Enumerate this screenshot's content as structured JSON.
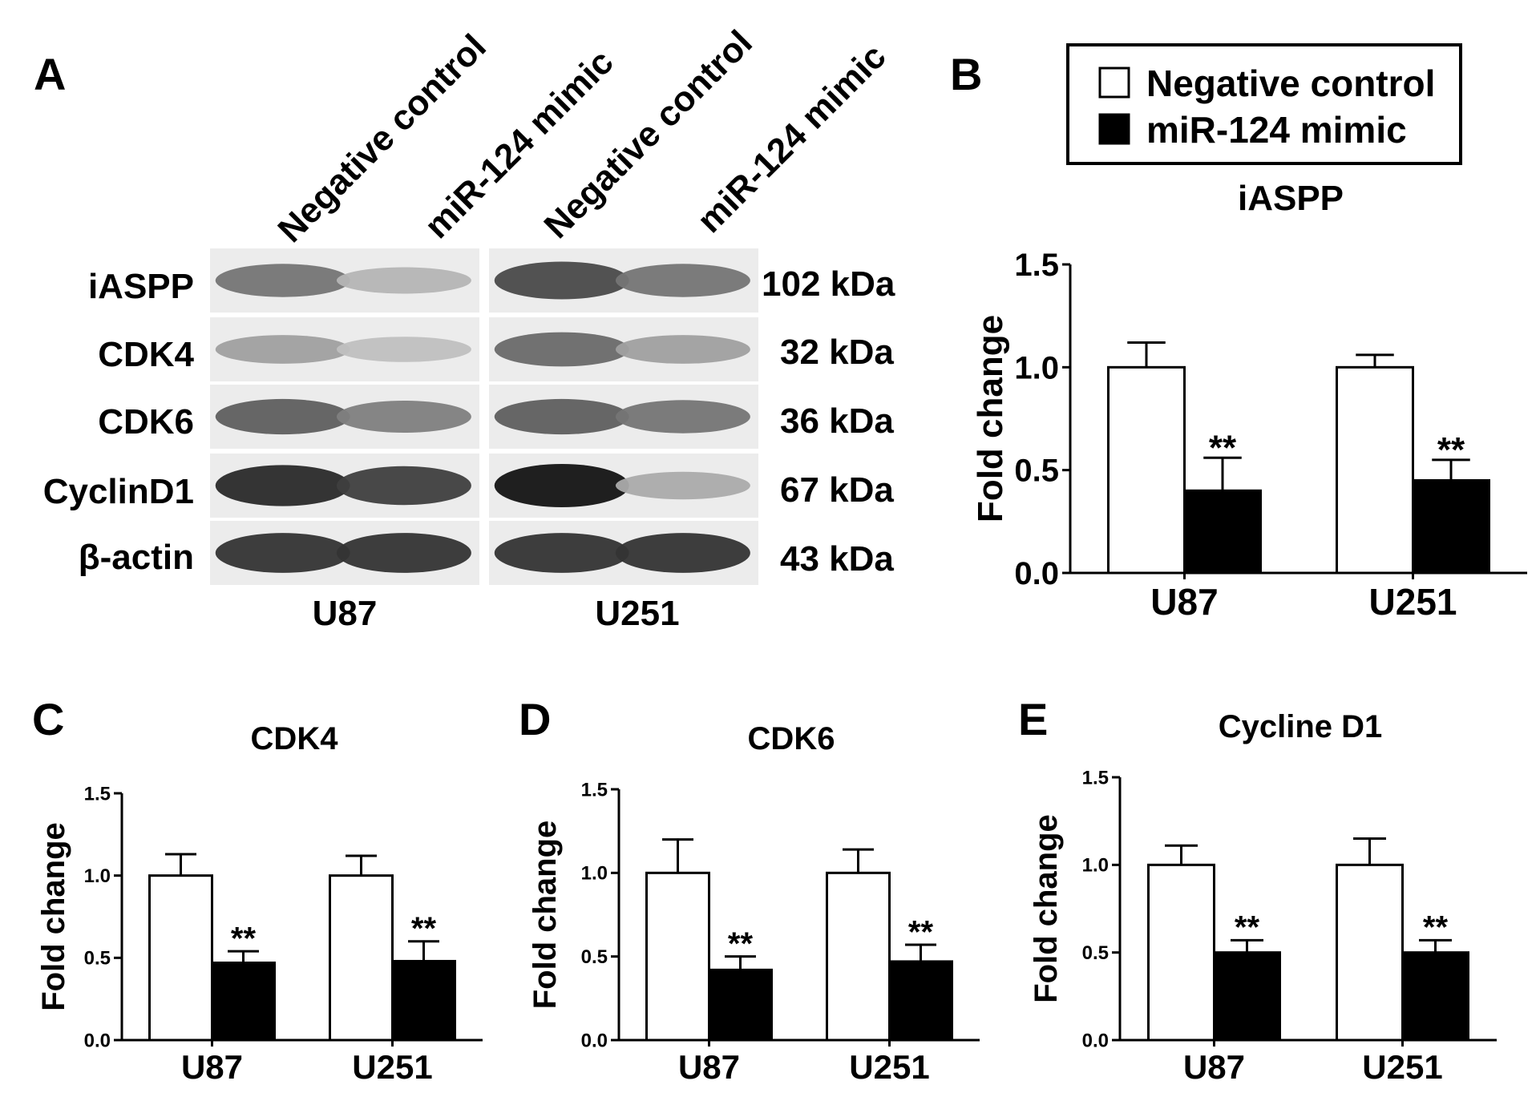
{
  "panel_a": {
    "letter": "A",
    "lanes": [
      "Negative control",
      "miR-124 mimic",
      "Negative control",
      "miR-124 mimic"
    ],
    "cell_lines": [
      "U87",
      "U251"
    ],
    "rows": [
      {
        "protein": "iASPP",
        "size": "102 kDa",
        "intensity": [
          0.55,
          0.25,
          0.75,
          0.55
        ]
      },
      {
        "protein": "CDK4",
        "size": "32 kDa",
        "intensity": [
          0.35,
          0.2,
          0.6,
          0.35
        ]
      },
      {
        "protein": "CDK6",
        "size": "36 kDa",
        "intensity": [
          0.65,
          0.5,
          0.65,
          0.55
        ]
      },
      {
        "protein": "CyclinD1",
        "size": "67 kDa",
        "intensity": [
          0.9,
          0.8,
          1.0,
          0.3
        ]
      },
      {
        "protein": "β-actin",
        "size": "43 kDa",
        "intensity": [
          0.85,
          0.85,
          0.85,
          0.85
        ]
      }
    ]
  },
  "legend": {
    "items": [
      {
        "label": "Negative control",
        "color": "#ffffff"
      },
      {
        "label": "miR-124 mimic",
        "color": "#000000"
      }
    ]
  },
  "chart_data": [
    {
      "panel": "B",
      "type": "bar",
      "title": "iASPP",
      "ylabel": "Fold change",
      "xlabel": "",
      "categories": [
        "U87",
        "U251"
      ],
      "ylim": [
        0,
        1.5
      ],
      "yticks": [
        "0.0",
        "0.5",
        "1.0",
        "1.5"
      ],
      "series": [
        {
          "name": "Negative control",
          "values": [
            1.0,
            1.0
          ],
          "errors": [
            0.12,
            0.06
          ]
        },
        {
          "name": "miR-124 mimic",
          "values": [
            0.4,
            0.45
          ],
          "errors": [
            0.16,
            0.1
          ],
          "annotations": [
            "**",
            "**"
          ]
        }
      ]
    },
    {
      "panel": "C",
      "type": "bar",
      "title": "CDK4",
      "ylabel": "Fold change",
      "xlabel": "",
      "categories": [
        "U87",
        "U251"
      ],
      "ylim": [
        0,
        1.5
      ],
      "yticks": [
        "0.0",
        "0.5",
        "1.0",
        "1.5"
      ],
      "series": [
        {
          "name": "Negative control",
          "values": [
            1.0,
            1.0
          ],
          "errors": [
            0.13,
            0.12
          ]
        },
        {
          "name": "miR-124 mimic",
          "values": [
            0.47,
            0.48
          ],
          "errors": [
            0.07,
            0.12
          ],
          "annotations": [
            "**",
            "**"
          ]
        }
      ]
    },
    {
      "panel": "D",
      "type": "bar",
      "title": "CDK6",
      "ylabel": "Fold change",
      "xlabel": "",
      "categories": [
        "U87",
        "U251"
      ],
      "ylim": [
        0,
        1.5
      ],
      "yticks": [
        "0.0",
        "0.5",
        "1.0",
        "1.5"
      ],
      "series": [
        {
          "name": "Negative control",
          "values": [
            1.0,
            1.0
          ],
          "errors": [
            0.2,
            0.14
          ]
        },
        {
          "name": "miR-124 mimic",
          "values": [
            0.42,
            0.47
          ],
          "errors": [
            0.08,
            0.1
          ],
          "annotations": [
            "**",
            "**"
          ]
        }
      ]
    },
    {
      "panel": "E",
      "type": "bar",
      "title": "Cycline D1",
      "ylabel": "Fold change",
      "xlabel": "",
      "categories": [
        "U87",
        "U251"
      ],
      "ylim": [
        0,
        1.5
      ],
      "yticks": [
        "0.0",
        "0.5",
        "1.0",
        "1.5"
      ],
      "series": [
        {
          "name": "Negative control",
          "values": [
            1.0,
            1.0
          ],
          "errors": [
            0.11,
            0.15
          ]
        },
        {
          "name": "miR-124 mimic",
          "values": [
            0.5,
            0.5
          ],
          "errors": [
            0.07,
            0.07
          ],
          "annotations": [
            "**",
            "**"
          ]
        }
      ]
    }
  ]
}
